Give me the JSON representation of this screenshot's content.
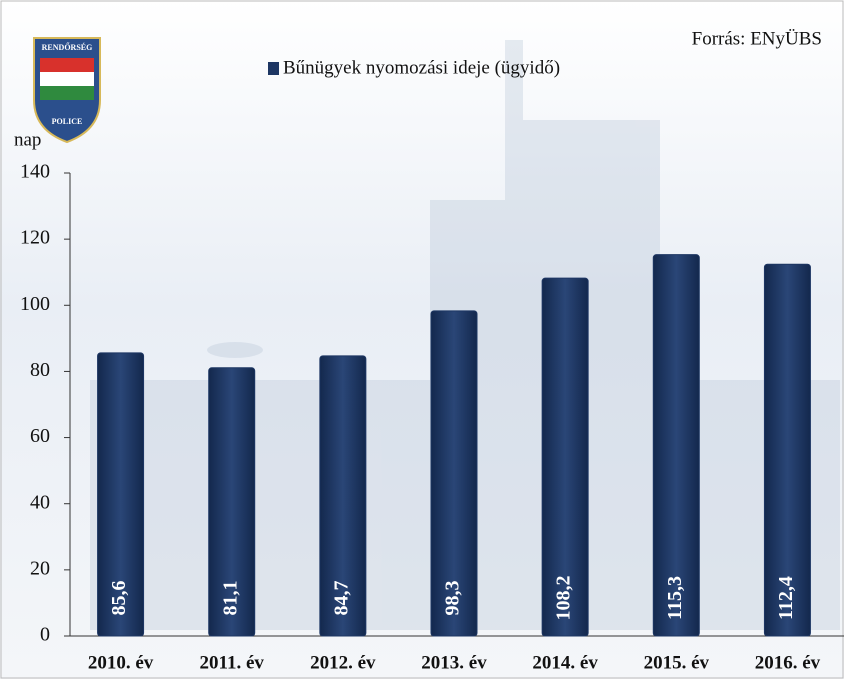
{
  "logo": {
    "top": "RENDŐRSÉG",
    "bottom": "POLICE"
  },
  "chart_data": {
    "type": "bar",
    "source": "Forrás: ENyÜBS",
    "y_label": "nap",
    "categories": [
      "2010. év",
      "2011. év",
      "2012. év",
      "2013. év",
      "2014. év",
      "2015. év",
      "2016. év"
    ],
    "series": [
      {
        "name": "Bűnügyek nyomozási ideje (ügyidő)",
        "color": "#1d3663",
        "values": [
          85.6,
          81.1,
          84.7,
          98.3,
          108.2,
          115.3,
          112.4
        ],
        "value_labels": [
          "85,6",
          "81,1",
          "84,7",
          "98,3",
          "108,2",
          "115,3",
          "112,4"
        ]
      }
    ],
    "ylim": [
      0,
      140
    ],
    "yticks": [
      0,
      20,
      40,
      60,
      80,
      100,
      120,
      140
    ]
  }
}
